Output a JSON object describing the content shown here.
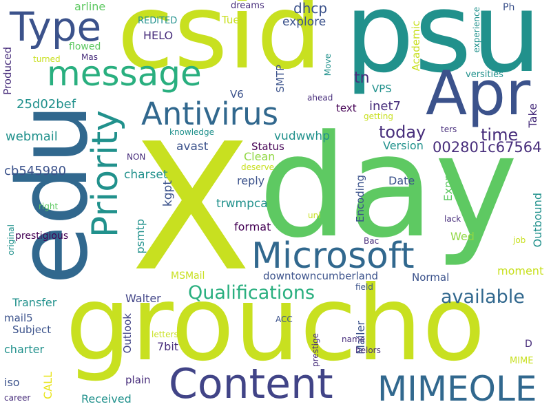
{
  "words": {
    "X": "X",
    "day": "day",
    "groucho": "groucho",
    "psu": "psu",
    "csid": "csid",
    "edu": "edu",
    "Apr": "Apr",
    "message": "message",
    "Type": "Type",
    "Antivirus": "Antivirus",
    "Microsoft": "Microsoft",
    "Content": "Content",
    "MIMEOLE": "MIMEOLE",
    "Priority": "Priority",
    "Qualifications": "Qualifications",
    "available": "available",
    "today": "today",
    "time": "time",
    "code002801": "002801c67564",
    "cb545980": "cb545980",
    "d25d02bef": "25d02bef",
    "webmail": "webmail",
    "dhcp": "dhcp",
    "explore": "explore",
    "arline": "arline",
    "dreams": "dreams",
    "Tue": "Tue",
    "HELO": "HELO",
    "REDITED": "REDITED",
    "flowed": "flowed",
    "Mas": "Mas",
    "turned": "turned",
    "Produced": "Produced",
    "V6": "V6",
    "SMTP": "SMTP",
    "tn": "tn",
    "VPS": "VPS",
    "inet7": "inet7",
    "text": "text",
    "Academic": "Academic",
    "Move": "Move",
    "Ph": "Ph",
    "experience": "experience",
    "versities": "versities",
    "ahead": "ahead",
    "getting": "getting",
    "ters": "ters",
    "Take": "Take",
    "knowledge": "knowledge",
    "vudwwhp": "vudwwhp",
    "Status": "Status",
    "Version": "Version",
    "avast": "avast",
    "Clean": "Clean",
    "deserve": "deserve",
    "NON": "NON",
    "charset": "charset",
    "kgpt": "kgpt",
    "reply": "reply",
    "Date": "Date",
    "Express": "Express",
    "Outbound": "Outbound",
    "trwmpca": "trwmpca",
    "Encoding": "Encoding",
    "uni": "uni",
    "lack": "lack",
    "right": "right",
    "psmtp": "psmtp",
    "format": "format",
    "Wed": "Wed",
    "original": "original",
    "prestigious": "prestigious",
    "Bac": "Bac",
    "job": "job",
    "moment": "moment",
    "MSMail": "MSMail",
    "downtowncumberland": "downtowncumberland",
    "Normal": "Normal",
    "field": "field",
    "Transfer": "Transfer",
    "Walter": "Walter",
    "mail5": "mail5",
    "Outlook": "Outlook",
    "ACC": "ACC",
    "Subject": "Subject",
    "letters": "letters",
    "prestige": "prestige",
    "Mailer": "Mailer",
    "name": "name",
    "D": "D",
    "charter": "charter",
    "bit7": "7bit",
    "helors": "helors",
    "MIME": "MIME",
    "CALL": "CALL",
    "plain": "plain",
    "iso": "iso",
    "Received": "Received",
    "career": "career"
  },
  "colors": {
    "yellow_green": "#c8e020",
    "green": "#5ec962",
    "teal": "#21918c",
    "blue": "#3b528b",
    "indigo": "#472d7b",
    "purple": "#440154",
    "sea_green": "#29af7f",
    "navy": "#31688e",
    "gold": "#e8e419",
    "light_green": "#90d743",
    "deep_blue": "#414487"
  }
}
